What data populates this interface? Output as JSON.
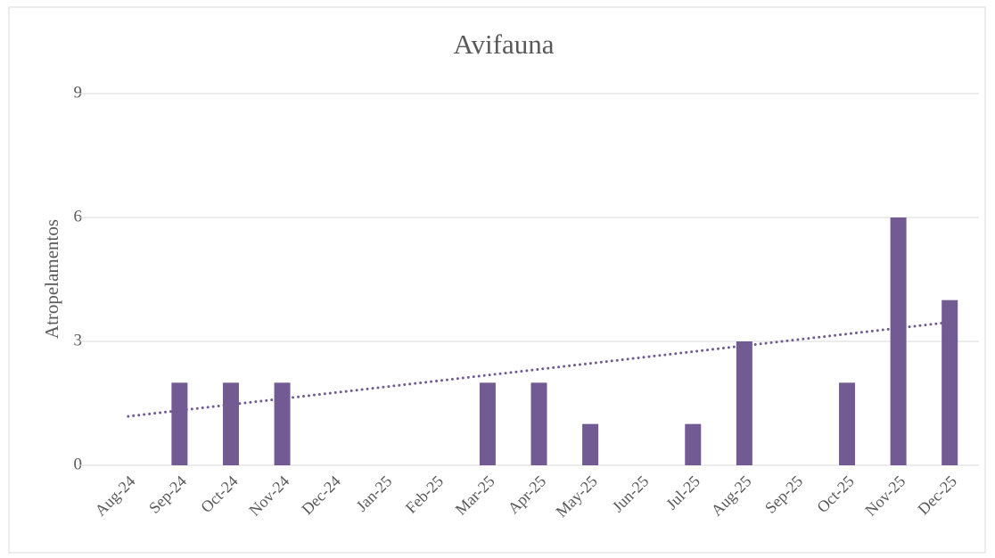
{
  "chart_data": {
    "type": "bar",
    "title": "Avifauna",
    "y_label": "Atropelamentos",
    "categories": [
      "Aug-24",
      "Sep-24",
      "Oct-24",
      "Nov-24",
      "Dec-24",
      "Jan-25",
      "Feb-25",
      "Mar-25",
      "Apr-25",
      "May-25",
      "Jun-25",
      "Jul-25",
      "Aug-25",
      "Sep-25",
      "Oct-25",
      "Nov-25",
      "Dec-25"
    ],
    "values": [
      null,
      2,
      2,
      2,
      null,
      null,
      null,
      2,
      2,
      1,
      null,
      1,
      3,
      null,
      2,
      6,
      4
    ],
    "color": "#725b92",
    "trendline": "linear",
    "trendline_color": "#725b92",
    "ylim": [
      0,
      9
    ],
    "yticks": [
      0,
      3,
      6,
      9
    ],
    "grid": true
  }
}
